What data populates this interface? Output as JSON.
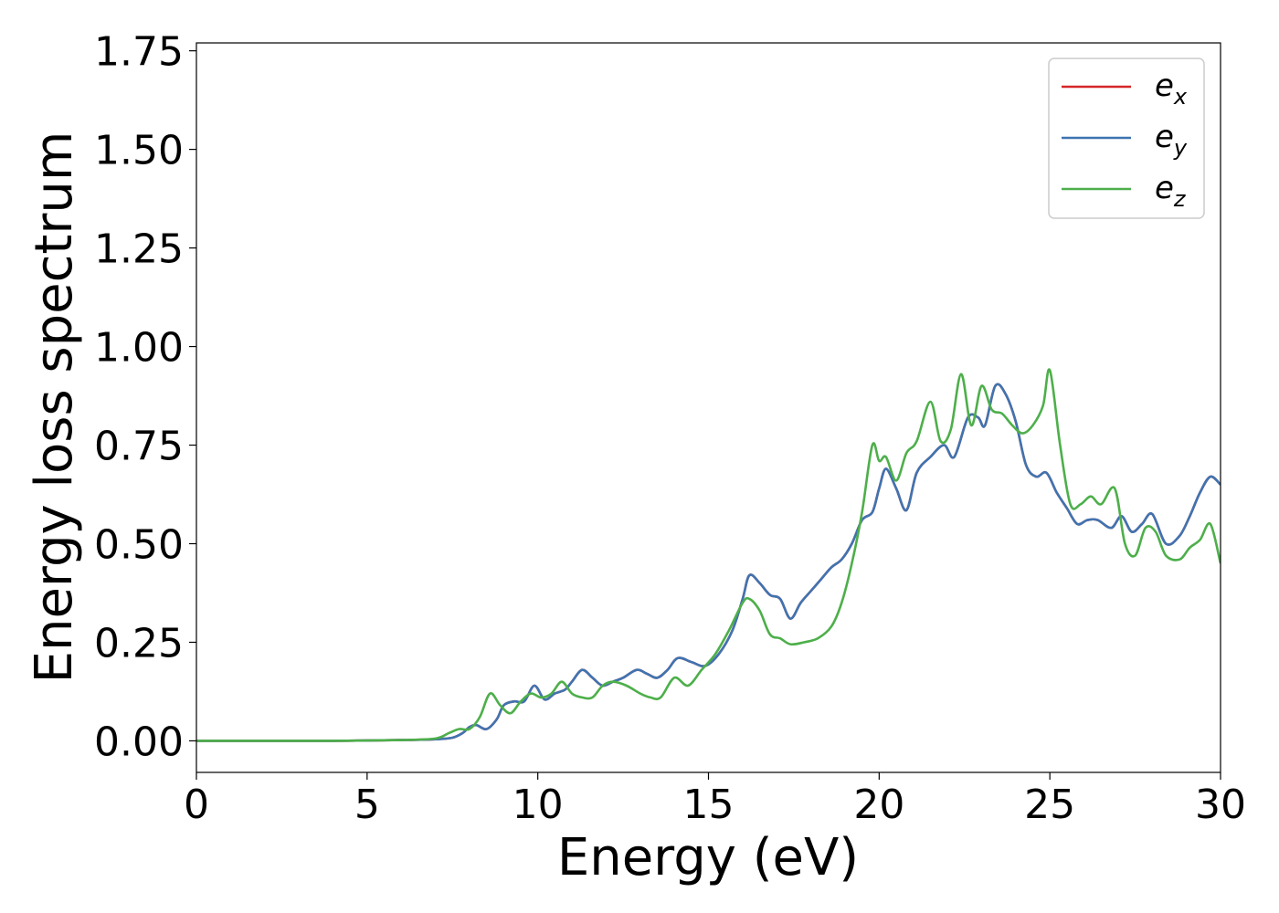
{
  "chart_data": {
    "type": "line",
    "title": "",
    "xlabel": "Energy (eV)",
    "ylabel": "Energy loss spectrum",
    "xlim": [
      0,
      30
    ],
    "ylim": [
      -0.08,
      1.77
    ],
    "xticks": [
      0,
      5,
      10,
      15,
      20,
      25,
      30
    ],
    "yticks": [
      0.0,
      0.25,
      0.5,
      0.75,
      1.0,
      1.25,
      1.5,
      1.75
    ],
    "xtick_labels": [
      "0",
      "5",
      "10",
      "15",
      "20",
      "25",
      "30"
    ],
    "ytick_labels": [
      "0.00",
      "0.25",
      "0.50",
      "0.75",
      "1.00",
      "1.25",
      "1.50",
      "1.75"
    ],
    "grid": false,
    "legend_position": "top-right",
    "series": [
      {
        "name": "e_x",
        "legend_base": "e",
        "legend_sub": "x",
        "color": "#d62728",
        "x": [
          0,
          2,
          4,
          6,
          7,
          7.5,
          7.8,
          8.0,
          8.2,
          8.5,
          8.8,
          9.0,
          9.3,
          9.6,
          9.9,
          10.2,
          10.5,
          10.8,
          11.0,
          11.3,
          11.6,
          11.9,
          12.2,
          12.5,
          12.9,
          13.2,
          13.5,
          13.8,
          14.1,
          14.5,
          14.9,
          15.3,
          15.7,
          16.0,
          16.2,
          16.5,
          16.8,
          17.1,
          17.4,
          17.7,
          18.0,
          18.3,
          18.6,
          18.9,
          19.2,
          19.5,
          19.8,
          20.0,
          20.2,
          20.5,
          20.8,
          21.1,
          21.5,
          21.9,
          22.2,
          22.6,
          22.9,
          23.1,
          23.4,
          23.7,
          24.0,
          24.3,
          24.6,
          24.9,
          25.2,
          25.5,
          25.8,
          26.1,
          26.4,
          26.8,
          27.1,
          27.4,
          27.7,
          28.0,
          28.4,
          28.8,
          29.1,
          29.4,
          29.7,
          30.0
        ],
        "y": [
          0.0,
          0.0,
          0.0,
          0.002,
          0.004,
          0.008,
          0.02,
          0.035,
          0.04,
          0.03,
          0.055,
          0.09,
          0.1,
          0.1,
          0.14,
          0.105,
          0.12,
          0.13,
          0.15,
          0.18,
          0.16,
          0.14,
          0.15,
          0.16,
          0.18,
          0.17,
          0.16,
          0.18,
          0.21,
          0.2,
          0.19,
          0.22,
          0.28,
          0.36,
          0.42,
          0.4,
          0.37,
          0.36,
          0.31,
          0.35,
          0.38,
          0.41,
          0.44,
          0.46,
          0.5,
          0.56,
          0.58,
          0.64,
          0.69,
          0.64,
          0.585,
          0.68,
          0.72,
          0.75,
          0.72,
          0.82,
          0.82,
          0.8,
          0.9,
          0.88,
          0.81,
          0.7,
          0.67,
          0.68,
          0.63,
          0.59,
          0.55,
          0.56,
          0.56,
          0.54,
          0.57,
          0.53,
          0.55,
          0.575,
          0.5,
          0.52,
          0.57,
          0.63,
          0.67,
          0.65
        ]
      },
      {
        "name": "e_y",
        "legend_base": "e",
        "legend_sub": "y",
        "color": "#3f74b1",
        "x": [
          0,
          2,
          4,
          6,
          7,
          7.5,
          7.8,
          8.0,
          8.2,
          8.5,
          8.8,
          9.0,
          9.3,
          9.6,
          9.9,
          10.2,
          10.5,
          10.8,
          11.0,
          11.3,
          11.6,
          11.9,
          12.2,
          12.5,
          12.9,
          13.2,
          13.5,
          13.8,
          14.1,
          14.5,
          14.9,
          15.3,
          15.7,
          16.0,
          16.2,
          16.5,
          16.8,
          17.1,
          17.4,
          17.7,
          18.0,
          18.3,
          18.6,
          18.9,
          19.2,
          19.5,
          19.8,
          20.0,
          20.2,
          20.5,
          20.8,
          21.1,
          21.5,
          21.9,
          22.2,
          22.6,
          22.9,
          23.1,
          23.4,
          23.7,
          24.0,
          24.3,
          24.6,
          24.9,
          25.2,
          25.5,
          25.8,
          26.1,
          26.4,
          26.8,
          27.1,
          27.4,
          27.7,
          28.0,
          28.4,
          28.8,
          29.1,
          29.4,
          29.7,
          30.0
        ],
        "y": [
          0.0,
          0.0,
          0.0,
          0.002,
          0.004,
          0.008,
          0.02,
          0.035,
          0.04,
          0.03,
          0.055,
          0.09,
          0.1,
          0.1,
          0.14,
          0.105,
          0.12,
          0.13,
          0.15,
          0.18,
          0.16,
          0.14,
          0.15,
          0.16,
          0.18,
          0.17,
          0.16,
          0.18,
          0.21,
          0.2,
          0.19,
          0.22,
          0.28,
          0.36,
          0.42,
          0.4,
          0.37,
          0.36,
          0.31,
          0.35,
          0.38,
          0.41,
          0.44,
          0.46,
          0.5,
          0.56,
          0.58,
          0.64,
          0.69,
          0.64,
          0.585,
          0.68,
          0.72,
          0.75,
          0.72,
          0.82,
          0.82,
          0.8,
          0.9,
          0.88,
          0.81,
          0.7,
          0.67,
          0.68,
          0.63,
          0.59,
          0.55,
          0.56,
          0.56,
          0.54,
          0.57,
          0.53,
          0.55,
          0.575,
          0.5,
          0.52,
          0.57,
          0.63,
          0.67,
          0.65
        ]
      },
      {
        "name": "e_z",
        "legend_base": "e",
        "legend_sub": "z",
        "color": "#4daf4a",
        "x": [
          0,
          2,
          4,
          6,
          7,
          7.4,
          7.7,
          8.0,
          8.3,
          8.6,
          8.9,
          9.2,
          9.5,
          9.8,
          10.1,
          10.4,
          10.7,
          11.0,
          11.3,
          11.6,
          11.9,
          12.2,
          12.6,
          13.0,
          13.3,
          13.6,
          14.0,
          14.4,
          14.8,
          15.2,
          15.6,
          16.0,
          16.2,
          16.5,
          16.8,
          17.1,
          17.4,
          17.8,
          18.2,
          18.6,
          18.9,
          19.2,
          19.5,
          19.8,
          20.0,
          20.2,
          20.5,
          20.8,
          21.1,
          21.5,
          21.8,
          22.1,
          22.4,
          22.7,
          23.0,
          23.3,
          23.6,
          23.9,
          24.2,
          24.5,
          24.8,
          25.0,
          25.3,
          25.6,
          25.9,
          26.2,
          26.5,
          26.9,
          27.2,
          27.5,
          27.8,
          28.1,
          28.4,
          28.8,
          29.1,
          29.4,
          29.7,
          30.0
        ],
        "y": [
          0.0,
          0.0,
          0.0,
          0.002,
          0.006,
          0.02,
          0.03,
          0.03,
          0.06,
          0.12,
          0.09,
          0.07,
          0.1,
          0.12,
          0.11,
          0.12,
          0.15,
          0.12,
          0.11,
          0.11,
          0.14,
          0.15,
          0.14,
          0.12,
          0.11,
          0.11,
          0.16,
          0.14,
          0.18,
          0.22,
          0.28,
          0.35,
          0.36,
          0.33,
          0.27,
          0.26,
          0.245,
          0.25,
          0.26,
          0.29,
          0.35,
          0.45,
          0.58,
          0.75,
          0.71,
          0.72,
          0.66,
          0.73,
          0.76,
          0.86,
          0.76,
          0.79,
          0.93,
          0.8,
          0.9,
          0.84,
          0.83,
          0.8,
          0.78,
          0.8,
          0.85,
          0.94,
          0.75,
          0.6,
          0.6,
          0.62,
          0.6,
          0.64,
          0.5,
          0.47,
          0.54,
          0.53,
          0.47,
          0.46,
          0.49,
          0.51,
          0.55,
          0.45
        ]
      }
    ]
  }
}
